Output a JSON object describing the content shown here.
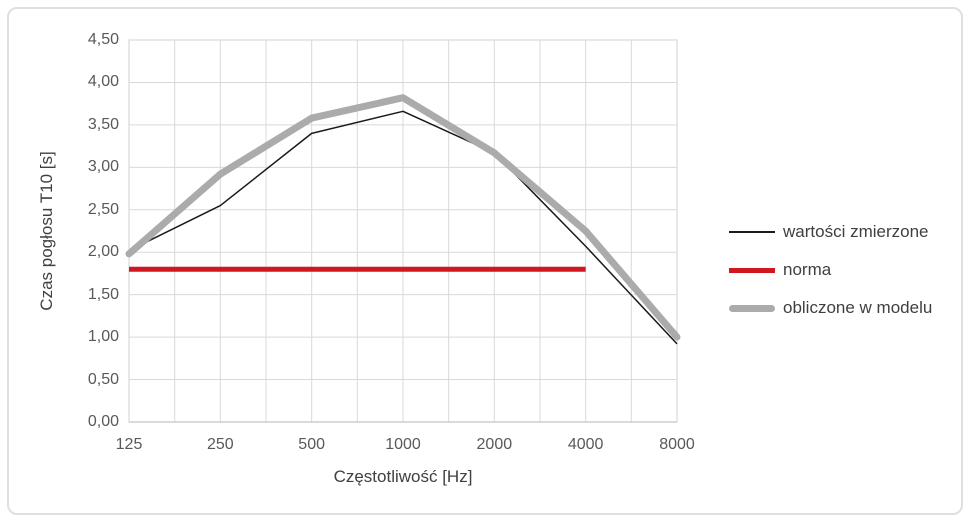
{
  "chart_data": {
    "type": "line",
    "title": "",
    "xlabel": "Częstotliwość [Hz]",
    "ylabel": "Czas pogłosu T10 [s]",
    "categories": [
      125,
      250,
      500,
      1000,
      2000,
      4000,
      8000
    ],
    "x_tick_labels": [
      "125",
      "250",
      "500",
      "1000",
      "2000",
      "4000",
      "8000"
    ],
    "y_tick_labels": [
      "0,00",
      "0,50",
      "1,00",
      "1,50",
      "2,00",
      "2,50",
      "3,00",
      "3,50",
      "4,00",
      "4,50"
    ],
    "ylim": [
      0,
      4.5
    ],
    "y_step": 0.5,
    "grid": "horizontal major every 0.5; vertical lines at categories and midpoints",
    "grid_color": "#d9d9d9",
    "legend_position": "right",
    "series": [
      {
        "name": "wartości zmierzone",
        "color": "#1a1a1a",
        "width": 1.5,
        "linecap": "butt",
        "values": [
          2.02,
          2.55,
          3.4,
          3.66,
          3.17,
          2.07,
          0.92
        ]
      },
      {
        "name": "norma",
        "color": "#d0161e",
        "width": 5,
        "linecap": "butt",
        "values": [
          1.8,
          1.8,
          1.8,
          1.8,
          1.8,
          1.8,
          null
        ]
      },
      {
        "name": "obliczone w modelu",
        "color": "#ababab",
        "width": 7,
        "linecap": "round",
        "values": [
          1.98,
          2.92,
          3.58,
          3.82,
          3.17,
          2.25,
          1.0
        ]
      }
    ]
  }
}
